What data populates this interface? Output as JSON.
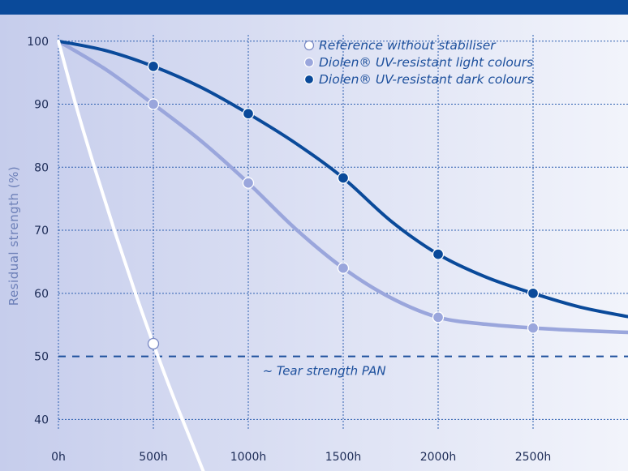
{
  "chart_data": {
    "type": "line",
    "title": "",
    "xlabel": "",
    "ylabel": "Residual strength (%)",
    "x_ticks": [
      "0h",
      "500h",
      "1000h",
      "1500h",
      "2000h",
      "2500h"
    ],
    "y_ticks": [
      "40",
      "50",
      "60",
      "70",
      "80",
      "90",
      "100"
    ],
    "xlim": [
      0,
      3000
    ],
    "ylim": [
      38.5,
      101
    ],
    "grid": true,
    "legend_position": "top-right",
    "series": [
      {
        "name": "Reference without stabiliser",
        "color": "#ffffff",
        "marker_fill": "#ffffff",
        "points": [
          [
            0,
            100
          ],
          [
            500,
            52
          ]
        ],
        "curve_x": [
          0,
          100,
          200,
          300,
          400,
          500,
          600,
          700,
          780
        ],
        "curve_y": [
          100,
          89,
          79,
          69.5,
          60.5,
          52,
          44,
          36.5,
          30.5
        ]
      },
      {
        "name": "Diolen® UV-resistant light colours",
        "color": "#9aa6dc",
        "marker_fill": "#9aa6dc",
        "points": [
          [
            0,
            100
          ],
          [
            500,
            90
          ],
          [
            1000,
            77.5
          ],
          [
            1500,
            64
          ],
          [
            2000,
            56.2
          ],
          [
            2500,
            54.5
          ]
        ],
        "curve_x": [
          0,
          250,
          500,
          750,
          1000,
          1250,
          1500,
          1750,
          2000,
          2250,
          2500,
          2750,
          3000
        ],
        "curve_y": [
          100,
          95.5,
          90,
          84.2,
          77.5,
          70.2,
          64,
          59.3,
          56.2,
          55.1,
          54.5,
          54.1,
          53.8
        ]
      },
      {
        "name": "Diolen® UV-resistant dark colours",
        "color": "#0a4a9a",
        "marker_fill": "#0a4a9a",
        "points": [
          [
            0,
            100
          ],
          [
            500,
            96
          ],
          [
            1000,
            88.5
          ],
          [
            1500,
            78.3
          ],
          [
            2000,
            66.2
          ],
          [
            2500,
            60
          ]
        ],
        "curve_x": [
          0,
          250,
          500,
          750,
          1000,
          1250,
          1500,
          1750,
          2000,
          2250,
          2500,
          2750,
          3000
        ],
        "curve_y": [
          100,
          98.5,
          96,
          92.7,
          88.5,
          83.8,
          78.3,
          71.5,
          66.2,
          62.6,
          60,
          57.8,
          56.3
        ]
      }
    ],
    "reference_line": {
      "label": "~ Tear strength PAN",
      "y": 50,
      "color": "#1c4f9c",
      "style": "dashed"
    },
    "colors": {
      "background_left": "#c6cdec",
      "background_right": "#f2f4fb",
      "gridline": "#2d5fb0",
      "header_band": "#0a4a9a",
      "tick_text": "#1b2a55",
      "ylabel_text": "#6d80b8",
      "legend_text": "#1c4f9c"
    }
  }
}
